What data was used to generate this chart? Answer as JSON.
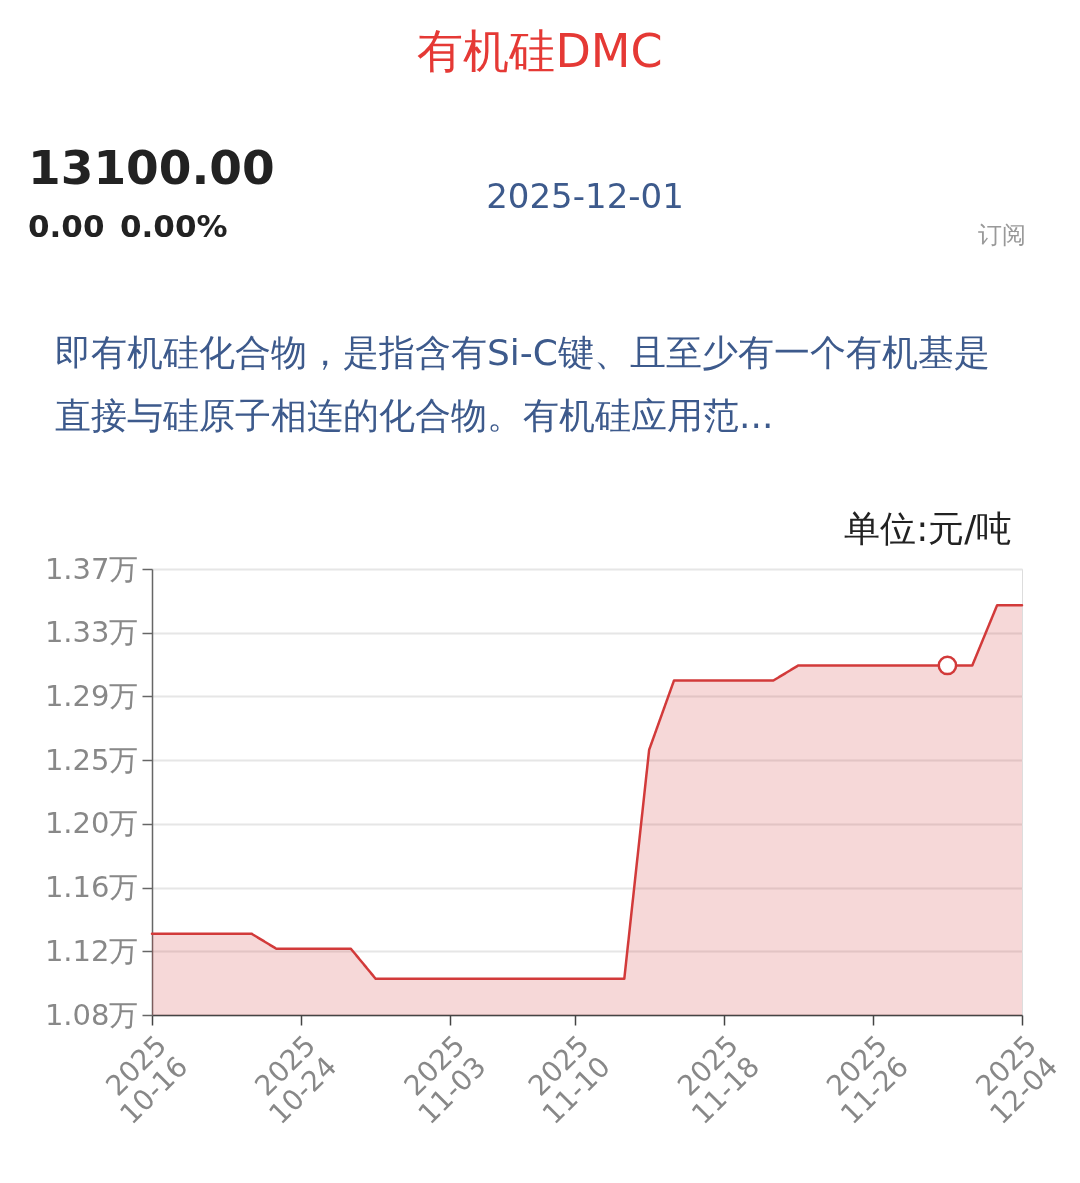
{
  "chart_data": {
    "type": "area",
    "title": "有机硅DMC",
    "subtitle": "即有机硅化合物，是指含有Si-C键、且至少有一个有机基是直接与硅原子相连的化合物。有机硅应用范...",
    "ylabel": "单位:元/吨",
    "annotations": [
      "13100.00",
      "0.00",
      "0.00%",
      "2025-12-01",
      "订阅"
    ],
    "categories": [
      "2025\n10-16",
      null,
      null,
      null,
      null,
      null,
      "2025\n10-24",
      null,
      null,
      null,
      null,
      null,
      "2025\n11-03",
      null,
      null,
      null,
      null,
      "2025\n11-10",
      null,
      null,
      null,
      null,
      null,
      "2025\n11-18",
      null,
      null,
      null,
      null,
      null,
      "2025\n11-26",
      null,
      null,
      null,
      null,
      null,
      "2025\n12-04"
    ],
    "series": [
      {
        "color": "#d23a3a",
        "values": [
          1.132,
          1.132,
          1.132,
          1.132,
          1.132,
          1.122,
          1.122,
          1.122,
          1.122,
          1.102,
          1.102,
          1.102,
          1.102,
          1.102,
          1.102,
          1.102,
          1.102,
          1.102,
          1.102,
          1.102,
          1.254,
          1.3,
          1.3,
          1.3,
          1.3,
          1.3,
          1.31,
          1.31,
          1.31,
          1.31,
          1.31,
          1.31,
          1.31,
          1.31,
          1.35,
          1.35
        ]
      },
      {
        "type": "scatter",
        "color": "#d23a3a",
        "marker": "circle",
        "values": [
          null,
          null,
          null,
          null,
          null,
          null,
          null,
          null,
          null,
          null,
          null,
          null,
          null,
          null,
          null,
          null,
          null,
          null,
          null,
          null,
          null,
          null,
          null,
          null,
          null,
          null,
          null,
          null,
          null,
          null,
          null,
          null,
          1.31,
          null,
          null,
          null
        ]
      }
    ],
    "ylim": [
      1.078,
      1.374
    ],
    "yticks": [
      {
        "value": 1.078,
        "label": "1.08万"
      },
      {
        "value": 1.1203,
        "label": "1.12万"
      },
      {
        "value": 1.1626,
        "label": "1.16万"
      },
      {
        "value": 1.2049,
        "label": "1.20万"
      },
      {
        "value": 1.2471,
        "label": "1.25万"
      },
      {
        "value": 1.2894,
        "label": "1.29万"
      },
      {
        "value": 1.3317,
        "label": "1.33万"
      },
      {
        "value": 1.374,
        "label": "1.37万"
      }
    ],
    "grid": "y"
  }
}
